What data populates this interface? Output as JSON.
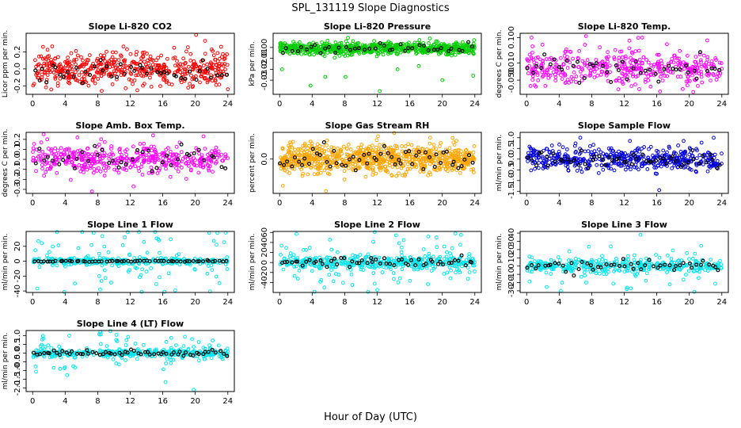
{
  "figure": {
    "title": "SPL_131119  Slope Diagnostics",
    "xlabel": "Hour of Day (UTC)"
  },
  "chart_data": [
    {
      "id": "co2",
      "type": "scatter",
      "title": "Slope Li-820 CO2",
      "ylabel": "Licor ppm per min.",
      "color": "#ff0000",
      "xlim": [
        -0.8,
        24.8
      ],
      "ylim": [
        -0.3,
        0.42
      ],
      "xticks": [
        0,
        4,
        8,
        12,
        16,
        20,
        24
      ],
      "xtick_labels": [
        "0",
        "4",
        "8",
        "12",
        "16",
        "20",
        "24"
      ],
      "yticks": [
        -0.2,
        0,
        0.2
      ],
      "ytick_labels": [
        "-0.2",
        "0.0",
        "0.2"
      ],
      "main_n": 520,
      "main_center": 0.0,
      "main_spread": 0.13,
      "black_n": 45,
      "black_center": -0.03,
      "black_spread": 0.09,
      "outliers": [
        [
          20.1,
          0.4
        ],
        [
          21.2,
          0.33
        ],
        [
          8.5,
          -0.26
        ],
        [
          24.0,
          -0.24
        ],
        [
          3.1,
          -0.2
        ]
      ]
    },
    {
      "id": "pressure",
      "type": "scatter",
      "title": "Slope Li-820 Pressure",
      "ylabel": "kPa per min.",
      "color": "#00cc00",
      "xlim": [
        -0.8,
        24.8
      ],
      "ylim": [
        -0.043,
        0.013
      ],
      "xticks": [
        0,
        4,
        8,
        12,
        16,
        20,
        24
      ],
      "xtick_labels": [
        "0",
        "4",
        "8",
        "12",
        "16",
        "20",
        "24"
      ],
      "yticks": [
        -0.03,
        -0.02,
        -0.01,
        0
      ],
      "ytick_labels": [
        "-0.03",
        "-0.02",
        "-0.01",
        "0.00"
      ],
      "main_n": 700,
      "main_center": -0.001,
      "main_spread": 0.0035,
      "black_n": 40,
      "black_center": -0.001,
      "black_spread": 0.003,
      "outliers": [
        [
          0.3,
          -0.02
        ],
        [
          3.8,
          -0.035
        ],
        [
          5.6,
          -0.027
        ],
        [
          8.1,
          -0.027
        ],
        [
          12.3,
          -0.04
        ],
        [
          14.5,
          -0.02
        ],
        [
          17.1,
          -0.017
        ],
        [
          20.0,
          -0.03
        ],
        [
          23.8,
          -0.026
        ]
      ]
    },
    {
      "id": "temp",
      "type": "scatter",
      "title": "Slope Li-820 Temp.",
      "ylabel": "degrees C per min.",
      "color": "#ff00ff",
      "xlim": [
        -0.8,
        24.8
      ],
      "ylim": [
        -0.1,
        0.115
      ],
      "xticks": [
        0,
        4,
        8,
        12,
        16,
        20,
        24
      ],
      "xtick_labels": [
        "0",
        "4",
        "8",
        "12",
        "16",
        "20",
        "24"
      ],
      "yticks": [
        -0.05,
        0.01,
        0.1
      ],
      "ytick_labels": [
        "-0.050",
        "0.010",
        "0.100"
      ],
      "main_n": 420,
      "main_center": -0.005,
      "main_spread": 0.04,
      "black_n": 45,
      "black_center": -0.01,
      "black_spread": 0.035,
      "outliers": [
        [
          0.6,
          0.1
        ],
        [
          7.3,
          0.105
        ],
        [
          14.2,
          0.1
        ],
        [
          16.4,
          -0.09
        ],
        [
          22.2,
          0.09
        ]
      ]
    },
    {
      "id": "box",
      "type": "scatter",
      "title": "Slope Amb. Box Temp.",
      "ylabel": "degrees C per min.",
      "color": "#ff00ff",
      "xlim": [
        -0.8,
        24.8
      ],
      "ylim": [
        -0.34,
        0.27
      ],
      "xticks": [
        0,
        4,
        8,
        12,
        16,
        20,
        24
      ],
      "xtick_labels": [
        "0",
        "4",
        "8",
        "12",
        "16",
        "20",
        "24"
      ],
      "yticks": [
        -0.3,
        -0.2,
        -0.1,
        0,
        0.1,
        0.2
      ],
      "ytick_labels": [
        "-0.3",
        "-0.2",
        "-0.1",
        "0.0",
        "0.1",
        "0.2"
      ],
      "main_n": 440,
      "main_center": 0.0,
      "main_spread": 0.1,
      "black_n": 40,
      "black_center": 0.0,
      "black_spread": 0.09,
      "outliers": [
        [
          7.3,
          -0.32
        ],
        [
          12.4,
          -0.27
        ],
        [
          14.8,
          0.24
        ],
        [
          21.0,
          0.23
        ]
      ]
    },
    {
      "id": "rh",
      "type": "scatter",
      "title": "Slope Gas Stream RH",
      "ylabel": "percent per min.",
      "color": "#ffa500",
      "xlim": [
        -0.8,
        24.8
      ],
      "ylim": [
        -0.45,
        0.35
      ],
      "xticks": [
        0,
        4,
        8,
        12,
        16,
        20,
        24
      ],
      "xtick_labels": [
        "0",
        "4",
        "8",
        "12",
        "16",
        "20",
        "24"
      ],
      "yticks": [
        0
      ],
      "ytick_labels": [
        "0.0"
      ],
      "main_n": 800,
      "main_center": 0.0,
      "main_spread": 0.12,
      "black_n": 55,
      "black_center": 0.0,
      "black_spread": 0.11,
      "outliers": [
        [
          0.4,
          -0.35
        ],
        [
          5.7,
          -0.42
        ],
        [
          12.1,
          0.3
        ],
        [
          18.5,
          0.28
        ]
      ]
    },
    {
      "id": "sample",
      "type": "scatter",
      "title": "Slope Sample Flow",
      "ylabel": "ml/min per min.",
      "color": "#0000dd",
      "xlim": [
        -0.8,
        24.8
      ],
      "ylim": [
        -1.6,
        1.25
      ],
      "xticks": [
        0,
        4,
        8,
        12,
        16,
        20,
        24
      ],
      "xtick_labels": [
        "0",
        "4",
        "8",
        "12",
        "16",
        "20",
        "24"
      ],
      "yticks": [
        -1.5,
        -1,
        -0.5,
        0,
        0.5,
        1
      ],
      "ytick_labels": [
        "-1.5",
        "-1.0",
        "-0.5",
        "0.0",
        "0.5",
        "1.0"
      ],
      "main_n": 480,
      "main_center": 0.0,
      "main_spread": 0.35,
      "black_n": 55,
      "black_center": 0.0,
      "black_spread": 0.3,
      "outliers": [
        [
          16.3,
          -1.45
        ],
        [
          19.3,
          0.85
        ],
        [
          23.0,
          1.0
        ],
        [
          6.6,
          1.0
        ]
      ]
    },
    {
      "id": "line1",
      "type": "scatter",
      "title": "Slope Line 1 Flow",
      "ylabel": "ml/min per min.",
      "color": "#00e5ee",
      "xlim": [
        -0.8,
        24.8
      ],
      "ylim": [
        -42,
        40
      ],
      "xticks": [
        0,
        4,
        8,
        12,
        16,
        20,
        24
      ],
      "xtick_labels": [
        "0",
        "4",
        "8",
        "12",
        "16",
        "20",
        "24"
      ],
      "yticks": [
        -40,
        -20,
        0,
        20
      ],
      "ytick_labels": [
        "-40",
        "-20",
        "0",
        "20"
      ],
      "main_n": 300,
      "main_center": 0.0,
      "main_spread": 3.0,
      "black_n": 60,
      "black_center": 0.0,
      "black_spread": 0.6,
      "sparse_n": 90,
      "sparse_spread": 22,
      "outliers": [
        [
          7.5,
          38
        ],
        [
          21.7,
          38
        ],
        [
          8.3,
          -38
        ],
        [
          5.2,
          -30
        ]
      ]
    },
    {
      "id": "line2",
      "type": "scatter",
      "title": "Slope Line 2 Flow",
      "ylabel": "ml/min per min.",
      "color": "#00e5ee",
      "xlim": [
        -0.8,
        24.8
      ],
      "ylim": [
        -60,
        62
      ],
      "xticks": [
        0,
        4,
        8,
        12,
        16,
        20,
        24
      ],
      "xtick_labels": [
        "0",
        "4",
        "8",
        "12",
        "16",
        "20",
        "24"
      ],
      "yticks": [
        -40,
        -20,
        0,
        20,
        40,
        60
      ],
      "ytick_labels": [
        "-40",
        "-20",
        "0",
        "20",
        "40",
        "60"
      ],
      "main_n": 360,
      "main_center": 0.0,
      "main_spread": 8.0,
      "black_n": 55,
      "black_center": 0.0,
      "black_spread": 7,
      "sparse_n": 100,
      "sparse_spread": 28,
      "outliers": [
        [
          21.6,
          58
        ],
        [
          22.3,
          55
        ],
        [
          12.0,
          -55
        ],
        [
          5.5,
          -50
        ]
      ]
    },
    {
      "id": "line3",
      "type": "scatter",
      "title": "Slope Line 3 Flow",
      "ylabel": "ml/min per min.",
      "color": "#00e5ee",
      "xlim": [
        -0.8,
        24.8
      ],
      "ylim": [
        -32,
        42
      ],
      "xticks": [
        0,
        4,
        8,
        12,
        16,
        20,
        24
      ],
      "xtick_labels": [
        "0",
        "4",
        "8",
        "12",
        "16",
        "20",
        "24"
      ],
      "yticks": [
        -30,
        -20,
        -10,
        0,
        10,
        20,
        30,
        40
      ],
      "ytick_labels": [
        "-30",
        "-20",
        "-10",
        "0",
        "10",
        "20",
        "30",
        "40"
      ],
      "main_n": 330,
      "main_center": 0.0,
      "main_spread": 5.0,
      "black_n": 50,
      "black_center": 0.0,
      "black_spread": 5,
      "sparse_n": 60,
      "sparse_spread": 14,
      "outliers": [
        [
          14.0,
          38
        ],
        [
          12.3,
          -28
        ],
        [
          4.2,
          -30
        ],
        [
          12.8,
          -27
        ]
      ]
    },
    {
      "id": "line4",
      "type": "scatter",
      "title": "Slope Line 4 (LT) Flow",
      "ylabel": "ml/min per min.",
      "color": "#00e5ee",
      "xlim": [
        -0.8,
        24.8
      ],
      "ylim": [
        -2.2,
        1.3
      ],
      "xticks": [
        0,
        4,
        8,
        12,
        16,
        20,
        24
      ],
      "xtick_labels": [
        "0",
        "4",
        "8",
        "12",
        "16",
        "20",
        "24"
      ],
      "yticks": [
        -2,
        -1.5,
        -1,
        -0.5,
        0,
        0.5,
        1
      ],
      "ytick_labels": [
        "-2.0",
        "-1.5",
        "-1.0",
        "-0.5",
        "0.0",
        "0.5",
        "1.0"
      ],
      "main_n": 340,
      "main_center": 0.0,
      "main_spread": 0.15,
      "black_n": 60,
      "black_center": 0.0,
      "black_spread": 0.12,
      "sparse_n": 80,
      "sparse_spread": 0.55,
      "outliers": [
        [
          19.8,
          -2.1
        ],
        [
          8.2,
          1.1
        ],
        [
          10.3,
          1.05
        ],
        [
          4.5,
          1.0
        ]
      ]
    }
  ]
}
